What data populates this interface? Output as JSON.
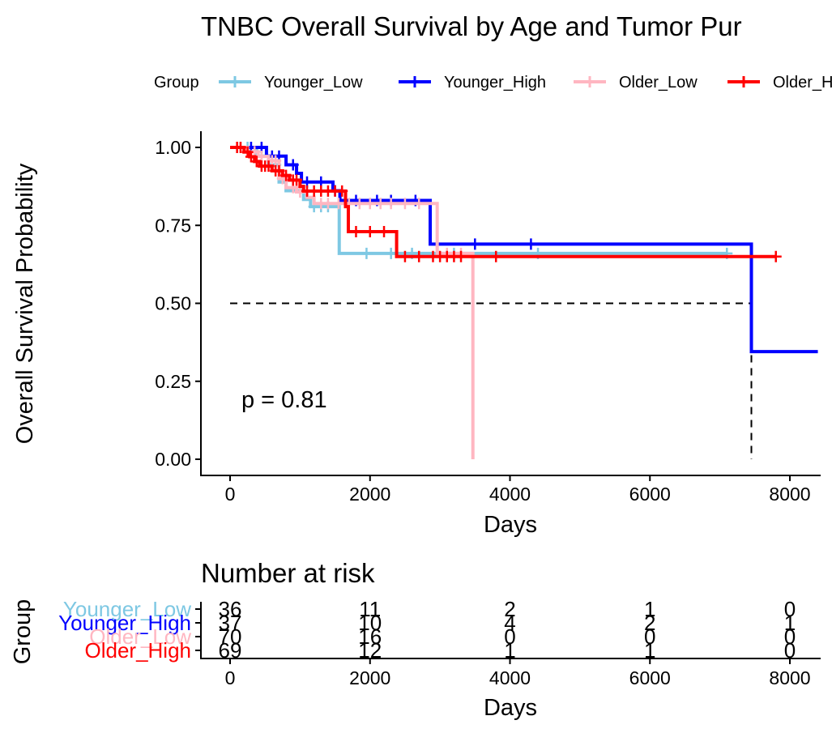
{
  "chart_data": [
    {
      "type": "line",
      "subtype": "kaplan-meier",
      "title": "TNBC Overall Survival by Age and Tumor Pur",
      "legend_title": "Group",
      "legend_position": "top",
      "xlabel": "Days",
      "ylabel": "Overall Survival Probability",
      "xlim": [
        0,
        8400
      ],
      "ylim": [
        0,
        1
      ],
      "x_ticks": [
        0,
        2000,
        4000,
        6000,
        8000
      ],
      "x_tick_labels": [
        "0",
        "2000",
        "4000",
        "6000",
        "8000"
      ],
      "y_ticks": [
        0,
        0.25,
        0.5,
        0.75,
        1.0
      ],
      "y_tick_labels": [
        "0.00",
        "0.25",
        "0.50",
        "0.75",
        "1.00"
      ],
      "grid": false,
      "annotation": "p = 0.81",
      "median_line": {
        "y": 0.5,
        "x_ends": [
          3470,
          7450
        ]
      },
      "series": [
        {
          "name": "Younger_Low",
          "color": "#7EC8E3",
          "steps": [
            [
              0,
              1.0
            ],
            [
              380,
              0.972
            ],
            [
              550,
              0.944
            ],
            [
              700,
              0.889
            ],
            [
              800,
              0.861
            ],
            [
              1050,
              0.833
            ],
            [
              1150,
              0.81
            ],
            [
              1560,
              0.66
            ],
            [
              7100,
              0.66
            ]
          ],
          "censors": [
            [
              250,
              1.0
            ],
            [
              300,
              1.0
            ],
            [
              450,
              0.972
            ],
            [
              650,
              0.944
            ],
            [
              1200,
              0.81
            ],
            [
              1300,
              0.81
            ],
            [
              1400,
              0.81
            ],
            [
              1950,
              0.66
            ],
            [
              2300,
              0.66
            ],
            [
              2600,
              0.66
            ],
            [
              3200,
              0.66
            ],
            [
              4400,
              0.66
            ],
            [
              7100,
              0.66
            ]
          ]
        },
        {
          "name": "Younger_High",
          "color": "#0000FF",
          "steps": [
            [
              0,
              1.0
            ],
            [
              520,
              0.972
            ],
            [
              800,
              0.944
            ],
            [
              950,
              0.917
            ],
            [
              1020,
              0.889
            ],
            [
              1470,
              0.861
            ],
            [
              1570,
              0.83
            ],
            [
              2860,
              0.69
            ],
            [
              7450,
              0.69
            ],
            [
              7450,
              0.345
            ],
            [
              8400,
              0.345
            ]
          ],
          "censors": [
            [
              300,
              1.0
            ],
            [
              450,
              1.0
            ],
            [
              600,
              0.972
            ],
            [
              700,
              0.972
            ],
            [
              900,
              0.944
            ],
            [
              1100,
              0.889
            ],
            [
              1300,
              0.889
            ],
            [
              1500,
              0.861
            ],
            [
              1800,
              0.83
            ],
            [
              2100,
              0.83
            ],
            [
              2300,
              0.83
            ],
            [
              2650,
              0.83
            ],
            [
              3500,
              0.69
            ],
            [
              4300,
              0.69
            ]
          ]
        },
        {
          "name": "Older_Low",
          "color": "#FFB6C1",
          "steps": [
            [
              0,
              1.0
            ],
            [
              250,
              0.986
            ],
            [
              400,
              0.971
            ],
            [
              550,
              0.957
            ],
            [
              700,
              0.9
            ],
            [
              800,
              0.871
            ],
            [
              950,
              0.857
            ],
            [
              1100,
              0.84
            ],
            [
              1200,
              0.82
            ],
            [
              2960,
              0.66
            ],
            [
              3470,
              0.66
            ],
            [
              3470,
              0.0
            ]
          ],
          "censors": [
            [
              150,
              1.0
            ],
            [
              350,
              0.986
            ],
            [
              450,
              0.971
            ],
            [
              600,
              0.957
            ],
            [
              650,
              0.957
            ],
            [
              750,
              0.9
            ],
            [
              900,
              0.871
            ],
            [
              1000,
              0.857
            ],
            [
              1300,
              0.82
            ],
            [
              1400,
              0.82
            ],
            [
              1550,
              0.82
            ],
            [
              1700,
              0.82
            ],
            [
              1850,
              0.82
            ],
            [
              2000,
              0.82
            ],
            [
              2150,
              0.82
            ],
            [
              2300,
              0.82
            ],
            [
              2500,
              0.82
            ],
            [
              2700,
              0.82
            ],
            [
              3100,
              0.66
            ],
            [
              3300,
              0.66
            ]
          ]
        },
        {
          "name": "Older_High",
          "color": "#FF0000",
          "steps": [
            [
              0,
              1.0
            ],
            [
              200,
              0.985
            ],
            [
              280,
              0.97
            ],
            [
              350,
              0.955
            ],
            [
              420,
              0.94
            ],
            [
              600,
              0.925
            ],
            [
              750,
              0.91
            ],
            [
              850,
              0.895
            ],
            [
              1000,
              0.875
            ],
            [
              1050,
              0.86
            ],
            [
              1650,
              0.81
            ],
            [
              1690,
              0.73
            ],
            [
              2380,
              0.65
            ],
            [
              7800,
              0.65
            ]
          ],
          "censors": [
            [
              100,
              1.0
            ],
            [
              150,
              1.0
            ],
            [
              250,
              0.985
            ],
            [
              300,
              0.97
            ],
            [
              380,
              0.955
            ],
            [
              450,
              0.94
            ],
            [
              500,
              0.94
            ],
            [
              550,
              0.94
            ],
            [
              650,
              0.925
            ],
            [
              700,
              0.925
            ],
            [
              800,
              0.91
            ],
            [
              900,
              0.895
            ],
            [
              950,
              0.895
            ],
            [
              1100,
              0.86
            ],
            [
              1200,
              0.86
            ],
            [
              1300,
              0.86
            ],
            [
              1400,
              0.86
            ],
            [
              1500,
              0.86
            ],
            [
              1600,
              0.86
            ],
            [
              1800,
              0.73
            ],
            [
              2000,
              0.73
            ],
            [
              2200,
              0.73
            ],
            [
              2500,
              0.65
            ],
            [
              2700,
              0.65
            ],
            [
              2900,
              0.65
            ],
            [
              3000,
              0.65
            ],
            [
              3100,
              0.65
            ],
            [
              3200,
              0.65
            ],
            [
              3300,
              0.65
            ],
            [
              3800,
              0.65
            ],
            [
              7800,
              0.65
            ]
          ]
        }
      ]
    },
    {
      "type": "table",
      "title": "Number at risk",
      "ylabel": "Group",
      "xlabel": "Days",
      "xlim": [
        0,
        8400
      ],
      "x_ticks": [
        0,
        2000,
        4000,
        6000,
        8000
      ],
      "x_tick_labels": [
        "0",
        "2000",
        "4000",
        "6000",
        "8000"
      ],
      "rows": [
        {
          "name": "Younger_Low",
          "color": "#7EC8E3",
          "values": [
            "36",
            "11",
            "2",
            "1",
            "0"
          ]
        },
        {
          "name": "Younger_High",
          "color": "#0000FF",
          "values": [
            "37",
            "10",
            "4",
            "2",
            "1"
          ]
        },
        {
          "name": "Older_Low",
          "color": "#FFB6C1",
          "values": [
            "70",
            "16",
            "0",
            "0",
            "0"
          ]
        },
        {
          "name": "Older_High",
          "color": "#FF0000",
          "values": [
            "69",
            "12",
            "1",
            "1",
            "0"
          ]
        }
      ]
    }
  ]
}
